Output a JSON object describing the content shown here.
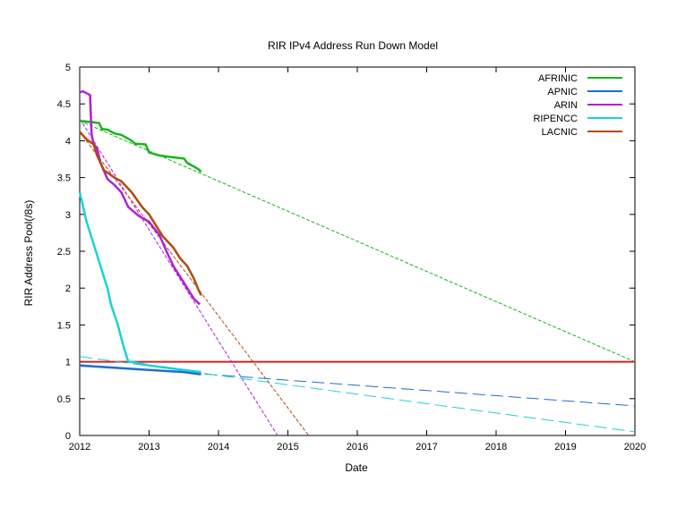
{
  "chart_data": {
    "type": "line",
    "title": "RIR IPv4 Address Run Down Model",
    "xlabel": "Date",
    "ylabel": "RIR Address Pool(/8s)",
    "xlim": [
      2012,
      2020
    ],
    "ylim": [
      0,
      5
    ],
    "x_ticks": [
      "2012",
      "2013",
      "2014",
      "2015",
      "2016",
      "2017",
      "2018",
      "2019",
      "2020"
    ],
    "y_ticks": [
      "0",
      "0.5",
      "1",
      "1.5",
      "2",
      "2.5",
      "3",
      "3.5",
      "4",
      "4.5",
      "5"
    ],
    "grid": false,
    "legend_position": "top-right",
    "series": [
      {
        "name": "AFRINIC",
        "color": "#18b418",
        "actual": [
          [
            2012.0,
            4.27
          ],
          [
            2012.1,
            4.26
          ],
          [
            2012.2,
            4.25
          ],
          [
            2012.28,
            4.24
          ],
          [
            2012.32,
            4.16
          ],
          [
            2012.4,
            4.15
          ],
          [
            2012.5,
            4.1
          ],
          [
            2012.6,
            4.08
          ],
          [
            2012.75,
            4.0
          ],
          [
            2012.8,
            3.96
          ],
          [
            2012.95,
            3.95
          ],
          [
            2013.0,
            3.84
          ],
          [
            2013.15,
            3.8
          ],
          [
            2013.3,
            3.78
          ],
          [
            2013.5,
            3.76
          ],
          [
            2013.55,
            3.7
          ],
          [
            2013.7,
            3.62
          ],
          [
            2013.75,
            3.58
          ]
        ],
        "trend": [
          [
            2012.0,
            4.27
          ],
          [
            2020.0,
            1.0
          ]
        ]
      },
      {
        "name": "APNIC",
        "color": "#1f6ed4",
        "actual": [
          [
            2012.0,
            0.95
          ],
          [
            2012.5,
            0.92
          ],
          [
            2013.0,
            0.89
          ],
          [
            2013.5,
            0.86
          ],
          [
            2013.75,
            0.83
          ]
        ],
        "trend": [
          [
            2012.0,
            0.96
          ],
          [
            2020.0,
            0.4
          ]
        ]
      },
      {
        "name": "ARIN",
        "color": "#b020d8",
        "actual": [
          [
            2012.0,
            4.66
          ],
          [
            2012.05,
            4.67
          ],
          [
            2012.15,
            4.62
          ],
          [
            2012.17,
            4.1
          ],
          [
            2012.2,
            3.95
          ],
          [
            2012.25,
            3.9
          ],
          [
            2012.3,
            3.7
          ],
          [
            2012.4,
            3.48
          ],
          [
            2012.5,
            3.4
          ],
          [
            2012.6,
            3.3
          ],
          [
            2012.7,
            3.1
          ],
          [
            2012.85,
            2.98
          ],
          [
            2013.0,
            2.9
          ],
          [
            2013.15,
            2.72
          ],
          [
            2013.25,
            2.5
          ],
          [
            2013.35,
            2.3
          ],
          [
            2013.45,
            2.15
          ],
          [
            2013.55,
            2.0
          ],
          [
            2013.65,
            1.85
          ],
          [
            2013.73,
            1.78
          ]
        ],
        "trend": [
          [
            2012.0,
            4.3
          ],
          [
            2014.85,
            0.0
          ]
        ]
      },
      {
        "name": "RIPENCC",
        "color": "#18d2d8",
        "actual": [
          [
            2012.0,
            3.3
          ],
          [
            2012.05,
            3.1
          ],
          [
            2012.1,
            2.9
          ],
          [
            2012.2,
            2.6
          ],
          [
            2012.3,
            2.3
          ],
          [
            2012.4,
            2.0
          ],
          [
            2012.45,
            1.78
          ],
          [
            2012.55,
            1.5
          ],
          [
            2012.62,
            1.25
          ],
          [
            2012.7,
            1.0
          ],
          [
            2012.75,
            1.0
          ]
        ],
        "after": [
          [
            2012.75,
            1.0
          ],
          [
            2013.0,
            0.95
          ],
          [
            2013.5,
            0.89
          ],
          [
            2013.75,
            0.86
          ]
        ],
        "trend": [
          [
            2012.0,
            1.07
          ],
          [
            2020.0,
            0.05
          ]
        ]
      },
      {
        "name": "LACNIC",
        "color": "#b24a12",
        "actual": [
          [
            2012.0,
            4.12
          ],
          [
            2012.1,
            4.02
          ],
          [
            2012.2,
            3.95
          ],
          [
            2012.25,
            3.8
          ],
          [
            2012.35,
            3.6
          ],
          [
            2012.5,
            3.5
          ],
          [
            2012.6,
            3.45
          ],
          [
            2012.75,
            3.3
          ],
          [
            2012.9,
            3.1
          ],
          [
            2013.0,
            3.0
          ],
          [
            2013.1,
            2.85
          ],
          [
            2013.2,
            2.7
          ],
          [
            2013.35,
            2.55
          ],
          [
            2013.45,
            2.4
          ],
          [
            2013.55,
            2.3
          ],
          [
            2013.65,
            2.12
          ],
          [
            2013.7,
            2.0
          ],
          [
            2013.75,
            1.9
          ]
        ],
        "trend": [
          [
            2012.0,
            4.12
          ],
          [
            2015.3,
            0.0
          ]
        ]
      }
    ],
    "reference_line": {
      "y": 1,
      "color": "#d42020"
    }
  }
}
